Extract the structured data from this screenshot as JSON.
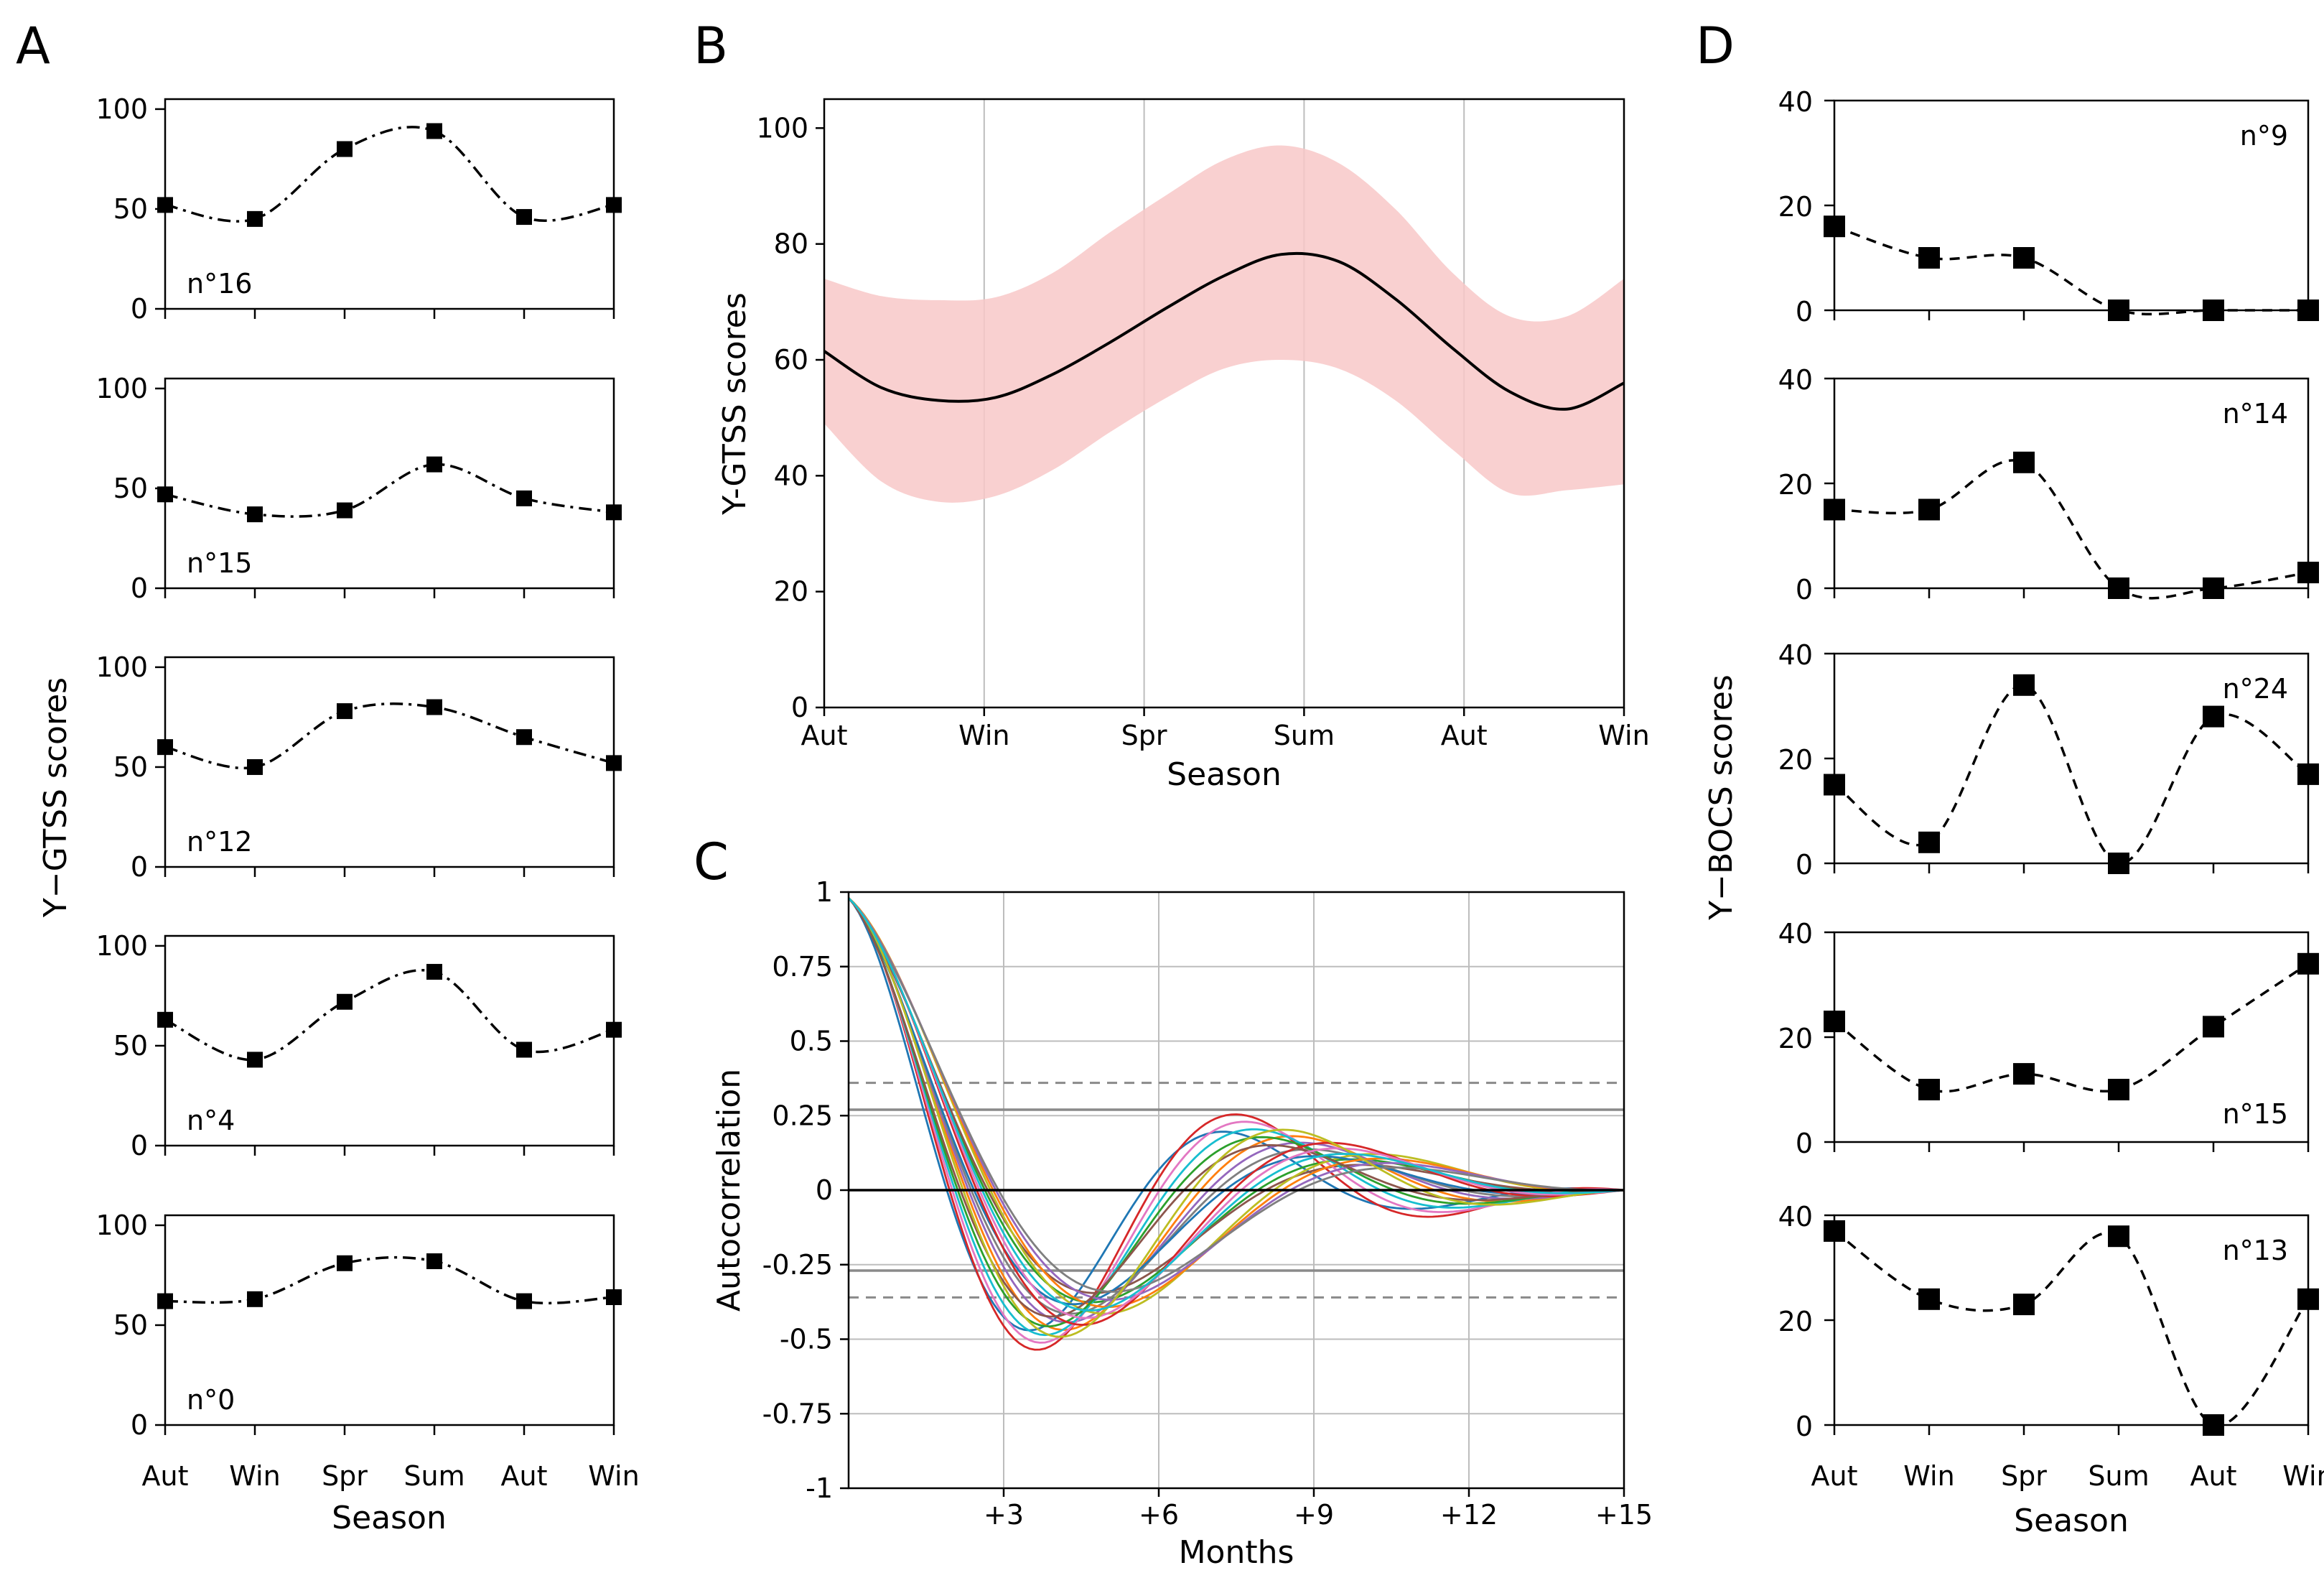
{
  "chart_data": [
    {
      "panel": "A",
      "type": "line",
      "marker": "square",
      "line_style": "dash-dot",
      "ylabel": "Y−GTSS scores",
      "xlabel": "Season",
      "categories": [
        "Aut",
        "Win",
        "Spr",
        "Sum",
        "Aut",
        "Win"
      ],
      "ylim": [
        0,
        100
      ],
      "yticks": [
        "0",
        "50",
        "100"
      ],
      "series": [
        {
          "name": "n°16",
          "values": [
            52,
            45,
            80,
            89,
            46,
            52
          ]
        },
        {
          "name": "n°15",
          "values": [
            47,
            37,
            39,
            62,
            45,
            38
          ]
        },
        {
          "name": "n°12",
          "values": [
            60,
            50,
            78,
            80,
            65,
            52
          ]
        },
        {
          "name": "n°4",
          "values": [
            63,
            43,
            72,
            87,
            48,
            58
          ]
        },
        {
          "name": "n°0",
          "values": [
            62,
            63,
            81,
            82,
            62,
            64
          ]
        }
      ]
    },
    {
      "panel": "B",
      "type": "line",
      "ylabel": "Y-GTSS scores",
      "xlabel": "Season",
      "categories": [
        "Aut",
        "Win",
        "Spr",
        "Sum",
        "Aut",
        "Win"
      ],
      "ylim": [
        0,
        105
      ],
      "yticks": [
        "0",
        "20",
        "40",
        "60",
        "80",
        "100"
      ],
      "grid": true,
      "band_color": "#f8c8c8",
      "mean": [
        61.5,
        55.2,
        53,
        53.5,
        57.5,
        63,
        69,
        74.5,
        78.2,
        77,
        70.5,
        62,
        54.5,
        51.5,
        56
      ],
      "upper": [
        74,
        71,
        70.3,
        70.8,
        75,
        82,
        88.5,
        94.5,
        97,
        94,
        86,
        75,
        67.5,
        67.5,
        74
      ],
      "lower": [
        49,
        39,
        35.5,
        36.5,
        41,
        47.5,
        53.5,
        58.5,
        60,
        58.5,
        53,
        44.5,
        37,
        37.5,
        38.5
      ]
    },
    {
      "panel": "C",
      "type": "line",
      "ylabel": "Autocorrelation",
      "xlabel": "Months",
      "xlim": [
        0,
        15
      ],
      "ylim": [
        -1,
        1
      ],
      "xticks": [
        "+3",
        "+6",
        "+9",
        "+12",
        "+15"
      ],
      "yticks": [
        "1",
        "0.75",
        "0.5",
        "0.25",
        "0",
        "-0.25",
        "-0.5",
        "-0.75",
        "-1"
      ],
      "grid": true,
      "confidence_lines": {
        "solid": 0.27,
        "dashed": 0.36
      },
      "series_count": 20,
      "period_range_months": [
        7.6,
        11.6
      ]
    },
    {
      "panel": "D",
      "type": "line",
      "marker": "square",
      "line_style": "dashed",
      "ylabel": "Y−BOCS scores",
      "xlabel": "Season",
      "categories": [
        "Aut",
        "Win",
        "Spr",
        "Sum",
        "Aut",
        "Win"
      ],
      "ylim": [
        0,
        40
      ],
      "yticks": [
        "0",
        "20",
        "40"
      ],
      "series": [
        {
          "name": "n°9",
          "values": [
            16,
            10,
            10,
            0,
            0,
            0
          ]
        },
        {
          "name": "n°14",
          "values": [
            15,
            15,
            24,
            0,
            0,
            3
          ]
        },
        {
          "name": "n°24",
          "values": [
            15,
            4,
            34,
            0,
            28,
            17
          ]
        },
        {
          "name": "n°15",
          "values": [
            23,
            10,
            13,
            10,
            22,
            34
          ]
        },
        {
          "name": "n°13",
          "values": [
            37,
            24,
            23,
            36,
            0,
            24
          ]
        }
      ]
    }
  ],
  "colors": [
    "#1f77b4",
    "#ff7f0e",
    "#2ca02c",
    "#d62728",
    "#9467bd",
    "#8c564b",
    "#e377c2",
    "#7f7f7f",
    "#bcbd22",
    "#17becf"
  ]
}
